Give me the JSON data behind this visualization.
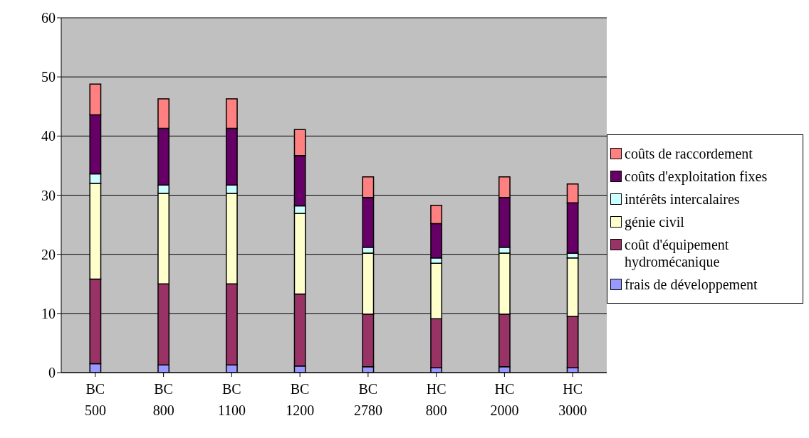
{
  "chart_data": {
    "type": "bar",
    "stacked": true,
    "categories": [
      "BC 500",
      "BC 800",
      "BC 1100",
      "BC 1200",
      "BC 2780",
      "HC 800",
      "HC 2000",
      "HC 3000"
    ],
    "series": [
      {
        "name": "frais de développement",
        "color": "#9999ff",
        "values": [
          1.5,
          1.3,
          1.3,
          1.1,
          1.0,
          0.8,
          1.0,
          0.8
        ]
      },
      {
        "name": "coût d'équipement hydromécanique",
        "color": "#993366",
        "values": [
          14.3,
          13.7,
          13.7,
          12.2,
          8.9,
          8.3,
          8.9,
          8.7
        ]
      },
      {
        "name": "génie civil",
        "color": "#ffffcc",
        "values": [
          16.2,
          15.3,
          15.3,
          13.6,
          10.3,
          9.4,
          10.3,
          9.9
        ]
      },
      {
        "name": "intérêts intercalaires",
        "color": "#ccffff",
        "values": [
          1.6,
          1.4,
          1.4,
          1.3,
          1.0,
          0.9,
          1.0,
          0.8
        ]
      },
      {
        "name": "coûts d'exploitation fixes",
        "color": "#660066",
        "values": [
          10.0,
          9.6,
          9.6,
          8.5,
          8.4,
          5.8,
          8.4,
          8.5
        ]
      },
      {
        "name": "coûts de raccordement",
        "color": "#ff8080",
        "values": [
          5.2,
          5.0,
          5.0,
          4.4,
          3.5,
          3.1,
          3.5,
          3.2
        ]
      }
    ],
    "ylim": [
      0,
      60
    ],
    "yticks": [
      0,
      10,
      20,
      30,
      40,
      50,
      60
    ],
    "grid": "y",
    "legend": "right"
  }
}
